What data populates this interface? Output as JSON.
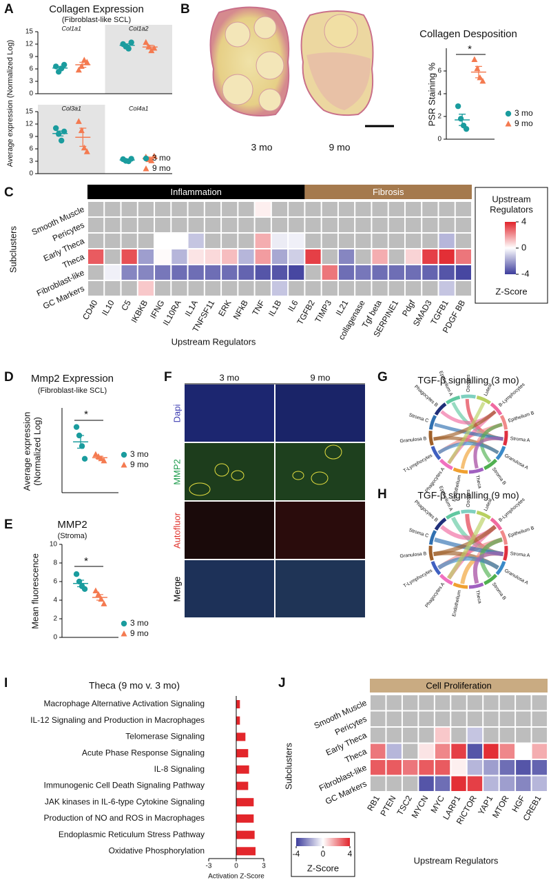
{
  "panel_labels": [
    "A",
    "B",
    "C",
    "D",
    "E",
    "F",
    "G",
    "H",
    "I",
    "J"
  ],
  "images": {
    "B": {
      "labels": [
        "3 mo",
        "9 mo"
      ]
    },
    "F": {
      "columns": [
        "3 mo",
        "9 mo"
      ],
      "rows": [
        "Dapi",
        "MMP2",
        "Autofluor",
        "Merge"
      ]
    }
  },
  "chart_data": [
    {
      "type": "dotplot",
      "title": "Collagen Expression",
      "subtitle": "(Fibroblast-like SCL)",
      "y_label": "Average expression (Normalized Log)",
      "series": [
        {
          "name": "3 mo",
          "color": "#1a9c9e",
          "marker": "circle"
        },
        {
          "name": "9 mo",
          "color": "#f47a50",
          "marker": "triangle"
        }
      ],
      "panels": [
        {
          "ylim": [
            0,
            15
          ],
          "yticks": [
            0,
            3,
            6,
            9,
            12,
            15
          ],
          "categories": [
            "Col1a1",
            "Col1a2"
          ],
          "shaded": [
            false,
            true
          ],
          "groups": [
            [
              {
                "values": [
                  6.6,
                  5.3,
                  6.1,
                  7.0
                ],
                "mean": 6.2,
                "error": 0.4
              },
              {
                "values": [
                  5.7,
                  6.6,
                  8.1,
                  7.6
                ],
                "mean": 7.0,
                "error": 0.6
              }
            ],
            [
              {
                "values": [
                  12.0,
                  11.4,
                  10.9,
                  12.4
                ],
                "mean": 11.7,
                "error": 0.35
              },
              {
                "values": [
                  12.4,
                  11.3,
                  10.4,
                  11.0
                ],
                "mean": 11.3,
                "error": 0.4
              }
            ]
          ]
        },
        {
          "ylim": [
            0,
            15
          ],
          "yticks": [
            0,
            3,
            6,
            9,
            12,
            15
          ],
          "categories": [
            "Col3a1",
            "Col4a1"
          ],
          "shaded": [
            true,
            false
          ],
          "groups": [
            [
              {
                "values": [
                  11.0,
                  9.6,
                  8.0,
                  10.2
                ],
                "mean": 9.7,
                "error": 0.6
              },
              {
                "values": [
                  12.6,
                  10.4,
                  6.2,
                  5.3
                ],
                "mean": 8.8,
                "error": 2.2
              }
            ],
            [
              {
                "values": [
                  3.5,
                  3.1,
                  3.0,
                  3.6
                ],
                "mean": 3.3,
                "error": 0.15
              },
              {
                "values": [
                  4.0,
                  3.4,
                  3.1,
                  4.2
                ],
                "mean": 3.7,
                "error": 0.3
              }
            ]
          ]
        }
      ]
    },
    {
      "type": "dotplot",
      "title": "Collagen Desposition",
      "y_label": "PSR Staining %",
      "annotation": "*",
      "series": [
        {
          "name": "3 mo",
          "color": "#1a9c9e",
          "marker": "circle"
        },
        {
          "name": "9 mo",
          "color": "#f47a50",
          "marker": "triangle"
        }
      ],
      "panels": [
        {
          "ylim": [
            0,
            8
          ],
          "yticks": [
            0,
            2,
            4,
            6
          ],
          "groups": [
            [
              {
                "values": [
                  2.9,
                  1.8,
                  1.2,
                  0.9
                ],
                "mean": 1.7,
                "error": 0.5
              },
              {
                "values": [
                  7.0,
                  6.2,
                  5.4,
                  5.1
                ],
                "mean": 5.9,
                "error": 0.5
              }
            ]
          ]
        }
      ]
    },
    {
      "type": "heatmap",
      "x_label": "Upstream Regulators",
      "y_label": "Subclusters",
      "column_groups": [
        {
          "name": "Inflammation",
          "color": "#000000",
          "text_color": "#ffffff",
          "columns": [
            "CD40",
            "IL10",
            "C5",
            "IKBKB",
            "IFNG",
            "IL10RA",
            "IL1A",
            "TNFSF11",
            "ERK",
            "NFkB",
            "TNF",
            "IL1B",
            "IL6"
          ]
        },
        {
          "name": "Fibrosis",
          "color": "#a57a4e",
          "text_color": "#ffffff",
          "columns": [
            "TGFB2",
            "TIMP3",
            "IL21",
            "collagenase",
            "Tgf beta",
            "SERPINE1",
            "Pdgf",
            "SMAD3",
            "TGFB1",
            "PDGF BB"
          ]
        }
      ],
      "rows": [
        {
          "name": "Smooth Muscle",
          "values": [
            null,
            null,
            null,
            null,
            null,
            null,
            null,
            null,
            null,
            null,
            0.3,
            null,
            null,
            null,
            null,
            null,
            null,
            null,
            null,
            null,
            null,
            null,
            null
          ]
        },
        {
          "name": "Pericytes",
          "values": [
            null,
            null,
            null,
            null,
            null,
            null,
            null,
            null,
            null,
            null,
            null,
            null,
            null,
            null,
            null,
            null,
            null,
            null,
            null,
            null,
            null,
            null,
            null
          ]
        },
        {
          "name": "Early Theca",
          "values": [
            null,
            null,
            null,
            null,
            0,
            0,
            -1.2,
            null,
            null,
            null,
            1.5,
            -0.4,
            -0.3,
            null,
            null,
            null,
            null,
            null,
            null,
            null,
            null,
            -1.5,
            null
          ]
        },
        {
          "name": "Theca",
          "values": [
            3.0,
            null,
            3.2,
            -2.0,
            0.1,
            -1.5,
            0.5,
            0.7,
            1.2,
            -1.5,
            1.8,
            -1.8,
            -1.0,
            3.5,
            null,
            -2.5,
            null,
            1.5,
            null,
            0.8,
            3.5,
            3.8,
            2.5
          ]
        },
        {
          "name": "Fibroblast-like",
          "values": [
            null,
            -0.3,
            -2.5,
            -2.5,
            -2.8,
            -3.0,
            -3.0,
            -3.0,
            -3.0,
            -3.2,
            -3.5,
            -3.5,
            -3.8,
            null,
            2.5,
            -3.0,
            -2.8,
            -3.0,
            -3.0,
            -3.0,
            -3.2,
            -3.5,
            -3.8
          ]
        },
        {
          "name": "GC Markers",
          "values": [
            null,
            null,
            null,
            1.0,
            null,
            null,
            null,
            null,
            null,
            null,
            null,
            -1.2,
            null,
            null,
            null,
            null,
            null,
            null,
            null,
            null,
            null,
            -1.2,
            null
          ]
        }
      ],
      "clim": [
        -4,
        4
      ],
      "colormap": [
        "#3d3d9c",
        "#ffffff",
        "#e1242b"
      ],
      "null_color": "#bdbdbd",
      "colorbar_title": [
        "Upstream",
        "Regulators"
      ],
      "colorbar_ticks": [
        4,
        0,
        -4
      ],
      "colorbar_label": "Z-Score"
    },
    {
      "type": "dotplot",
      "title": "Mmp2 Expression",
      "subtitle": "(Fibroblast-like SCL)",
      "y_label": [
        "Average expression",
        "(Normalized Log)"
      ],
      "annotation": "*",
      "series": [
        {
          "name": "3 mo",
          "color": "#1a9c9e",
          "marker": "circle"
        },
        {
          "name": "9 mo",
          "color": "#f47a50",
          "marker": "triangle"
        }
      ],
      "panels": [
        {
          "ylim": [
            0,
            4
          ],
          "groups": [
            [
              {
                "values": [
                  3.1,
                  2.7,
                  2.2,
                  1.6
                ],
                "mean": 2.4,
                "error": 0.3
              },
              {
                "values": [
                  1.8,
                  1.7,
                  1.6,
                  1.5
                ],
                "mean": 1.65,
                "error": 0.07
              }
            ]
          ]
        }
      ]
    },
    {
      "type": "dotplot",
      "title": "MMP2",
      "subtitle": "(Stroma)",
      "y_label": "Mean fluorescence",
      "annotation": "*",
      "series": [
        {
          "name": "3 mo",
          "color": "#1a9c9e",
          "marker": "circle"
        },
        {
          "name": "9 mo",
          "color": "#f47a50",
          "marker": "triangle"
        }
      ],
      "panels": [
        {
          "ylim": [
            0,
            10
          ],
          "yticks": [
            0,
            2,
            4,
            6,
            8,
            10
          ],
          "groups": [
            [
              {
                "values": [
                  6.8,
                  6.0,
                  5.5,
                  5.2
                ],
                "mean": 5.8,
                "error": 0.35
              },
              {
                "values": [
                  5.0,
                  4.6,
                  4.1,
                  3.6
                ],
                "mean": 4.3,
                "error": 0.3
              }
            ]
          ]
        }
      ]
    },
    {
      "type": "chord",
      "title": "TGF-β signalling (3 mo)",
      "labels": [
        "Oocytes",
        "Luteal",
        "B-Lymphocytes",
        "Epithelium B",
        "Stroma A",
        "Granulosa A",
        "Stroma B",
        "Theca",
        "Endothelium",
        "Phagocytes A",
        "T-Lymphocytes",
        "Granulosa B",
        "Stroma C",
        "Phagocytes B",
        "Epithelium A"
      ],
      "colors": [
        "#7fd0c0",
        "#b8d060",
        "#f06aa0",
        "#f08a8a",
        "#e03040",
        "#3a8ac8",
        "#50b050",
        "#a060c0",
        "#f0a030",
        "#f070c0",
        "#4060c0",
        "#a0602a",
        "#3070b0",
        "#20307a",
        "#60c8a0"
      ]
    },
    {
      "type": "chord",
      "title": "TGF-β signalling (9 mo)",
      "labels": [
        "Oocytes",
        "Luteal",
        "B-Lymphocytes",
        "Epithelium B",
        "Stroma A",
        "Granulosa A",
        "Stroma B",
        "Theca",
        "Endothelium",
        "Phagocytes A",
        "T-Lymphocytes",
        "Granulosa B",
        "Stroma C",
        "Phagocytes B",
        "Epithelium A"
      ],
      "colors": [
        "#7fd0c0",
        "#b8d060",
        "#f06aa0",
        "#f08a8a",
        "#e03040",
        "#3a8ac8",
        "#50b050",
        "#a060c0",
        "#f0a030",
        "#f070c0",
        "#4060c0",
        "#a0602a",
        "#3070b0",
        "#20307a",
        "#60c8a0"
      ]
    },
    {
      "type": "hbar",
      "title": "Theca (9 mo v. 3 mo)",
      "categories": [
        "Macrophage Alternative Activation Signaling",
        "IL-12 Signaling and Production in Macrophages",
        "Telomerase Signaling",
        "Acute Phase Response Signaling",
        "IL-8 Signaling",
        "Immunogenic Cell Death Signaling Pathway",
        "JAK kinases in IL-6-type Cytokine Signaling",
        "Production of NO and ROS in Macrophages",
        "Endoplasmic Reticulum Stress Pathway",
        "Oxidative Phosphorylation"
      ],
      "values": [
        0.4,
        0.4,
        1.0,
        1.3,
        1.4,
        1.3,
        1.9,
        1.9,
        2.0,
        2.1
      ],
      "color": "#e3262b",
      "xlim": [
        -3,
        3
      ],
      "xticks": [
        -3,
        0,
        3
      ],
      "x_label": "Activation Z-Score"
    },
    {
      "type": "heatmap",
      "x_label": "Upstream Regulators",
      "y_label": "Subclusters",
      "column_groups": [
        {
          "name": "Cell Proliferation",
          "color": "#c9ab82",
          "text_color": "#000000",
          "columns": [
            "RB1",
            "PTEN",
            "TSC2",
            "MYCN",
            "MYC",
            "LARP1",
            "RICTOR",
            "YAP1",
            "MTOR",
            "HGF",
            "CREB1"
          ]
        }
      ],
      "rows": [
        {
          "name": "Smooth Muscle",
          "values": [
            null,
            null,
            null,
            null,
            null,
            null,
            null,
            null,
            null,
            null,
            null
          ]
        },
        {
          "name": "Pericytes",
          "values": [
            null,
            null,
            null,
            null,
            null,
            null,
            null,
            null,
            null,
            null,
            null
          ]
        },
        {
          "name": "Early Theca",
          "values": [
            null,
            null,
            null,
            null,
            1.0,
            null,
            -1.2,
            null,
            null,
            null,
            null
          ]
        },
        {
          "name": "Theca",
          "values": [
            2.5,
            -1.5,
            null,
            0.5,
            2.2,
            3.5,
            -3.5,
            3.8,
            2.2,
            0,
            1.5
          ]
        },
        {
          "name": "Fibroblast-like",
          "values": [
            3.0,
            3.0,
            2.5,
            3.0,
            3.0,
            0.3,
            -1.5,
            -2.0,
            -3.0,
            -3.5,
            -3.2
          ]
        },
        {
          "name": "GC Markers",
          "values": [
            null,
            null,
            null,
            -3.5,
            -3.0,
            3.8,
            3.5,
            -1.5,
            -2.0,
            -2.5,
            -1.5
          ]
        }
      ],
      "clim": [
        -4,
        4
      ],
      "colormap": [
        "#3d3d9c",
        "#ffffff",
        "#e1242b"
      ],
      "null_color": "#bdbdbd",
      "colorbar_ticks": [
        -4,
        0,
        4
      ],
      "colorbar_label": "Z-Score"
    }
  ]
}
